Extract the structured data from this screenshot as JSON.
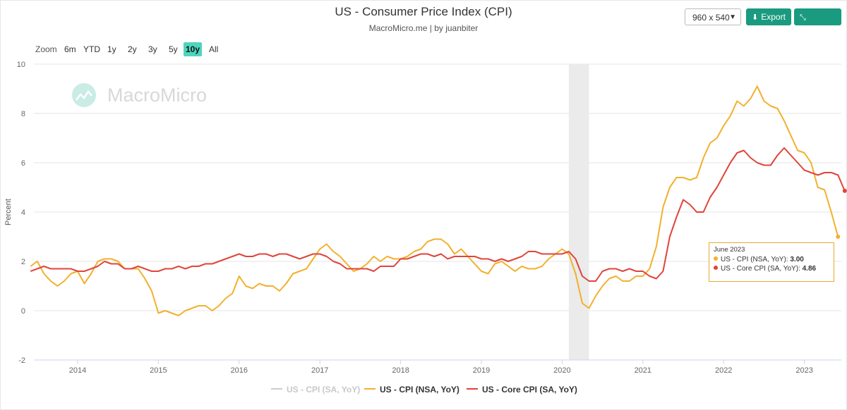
{
  "header": {
    "title": "US - Consumer Price Index (CPI)",
    "subtitle": "MacroMicro.me | by juanbiter",
    "size_select": "960 x 540",
    "export_label": "Export",
    "reduce_label": "Reduce"
  },
  "zoom": {
    "label": "Zoom",
    "options": [
      "6m",
      "YTD",
      "1y",
      "2y",
      "3y",
      "5y",
      "10y",
      "All"
    ],
    "active": "10y"
  },
  "watermark": "MacroMicro",
  "tooltip": {
    "date": "June 2023",
    "rows": [
      {
        "label": "US - CPI (NSA, YoY): ",
        "value": "3.00",
        "color": "#f2b02c"
      },
      {
        "label": "US - Core CPI (SA, YoY): ",
        "value": "4.86",
        "color": "#e0443a"
      }
    ]
  },
  "legend": [
    {
      "name": "US - CPI (SA, YoY)",
      "color": "#cccccc",
      "hidden": true
    },
    {
      "name": "US - CPI (NSA, YoY)",
      "color": "#f2b02c"
    },
    {
      "name": "US - Core CPI (SA, YoY)",
      "color": "#e0443a"
    }
  ],
  "chart_data": {
    "type": "line",
    "title": "US - Consumer Price Index (CPI)",
    "ylabel": "Percent",
    "ylim": [
      -2,
      10
    ],
    "yticks": [
      -2,
      0,
      2,
      4,
      6,
      8,
      10
    ],
    "xlim": [
      2013.458,
      2023.458
    ],
    "xticks": [
      "2014",
      "2015",
      "2016",
      "2017",
      "2018",
      "2019",
      "2020",
      "2021",
      "2022",
      "2023"
    ],
    "recession_band": [
      2020.083,
      2020.333
    ],
    "grid": true,
    "legend_position": "bottom",
    "series": [
      {
        "name": "US - CPI (NSA, YoY)",
        "color": "#f2b02c",
        "start": "2013-06",
        "values": [
          1.8,
          2.0,
          1.5,
          1.2,
          1.0,
          1.2,
          1.5,
          1.6,
          1.1,
          1.5,
          2.0,
          2.1,
          2.1,
          2.0,
          1.7,
          1.7,
          1.7,
          1.3,
          0.8,
          -0.1,
          0.0,
          -0.1,
          -0.2,
          0.0,
          0.1,
          0.2,
          0.2,
          0.0,
          0.2,
          0.5,
          0.7,
          1.4,
          1.0,
          0.9,
          1.1,
          1.0,
          1.0,
          0.8,
          1.1,
          1.5,
          1.6,
          1.7,
          2.1,
          2.5,
          2.7,
          2.4,
          2.2,
          1.9,
          1.6,
          1.7,
          1.9,
          2.2,
          2.0,
          2.2,
          2.1,
          2.1,
          2.2,
          2.4,
          2.5,
          2.8,
          2.9,
          2.9,
          2.7,
          2.3,
          2.5,
          2.2,
          1.9,
          1.6,
          1.5,
          1.9,
          2.0,
          1.8,
          1.6,
          1.8,
          1.7,
          1.7,
          1.8,
          2.1,
          2.3,
          2.5,
          2.3,
          1.5,
          0.3,
          0.1,
          0.6,
          1.0,
          1.3,
          1.4,
          1.2,
          1.2,
          1.4,
          1.4,
          1.7,
          2.6,
          4.2,
          5.0,
          5.4,
          5.4,
          5.3,
          5.4,
          6.2,
          6.8,
          7.0,
          7.5,
          7.9,
          8.5,
          8.3,
          8.6,
          9.1,
          8.5,
          8.3,
          8.2,
          7.7,
          7.1,
          6.5,
          6.4,
          6.0,
          5.0,
          4.9,
          4.0,
          3.0
        ]
      },
      {
        "name": "US - Core CPI (SA, YoY)",
        "color": "#e0443a",
        "start": "2013-06",
        "values": [
          1.6,
          1.7,
          1.8,
          1.7,
          1.7,
          1.7,
          1.7,
          1.6,
          1.6,
          1.7,
          1.8,
          2.0,
          1.9,
          1.9,
          1.7,
          1.7,
          1.8,
          1.7,
          1.6,
          1.6,
          1.7,
          1.7,
          1.8,
          1.7,
          1.8,
          1.8,
          1.9,
          1.9,
          2.0,
          2.1,
          2.2,
          2.3,
          2.2,
          2.2,
          2.3,
          2.3,
          2.2,
          2.3,
          2.3,
          2.2,
          2.1,
          2.2,
          2.3,
          2.3,
          2.2,
          2.0,
          1.9,
          1.7,
          1.7,
          1.7,
          1.7,
          1.6,
          1.8,
          1.8,
          1.8,
          2.1,
          2.1,
          2.2,
          2.3,
          2.3,
          2.2,
          2.3,
          2.1,
          2.2,
          2.2,
          2.2,
          2.2,
          2.1,
          2.1,
          2.0,
          2.1,
          2.0,
          2.1,
          2.2,
          2.4,
          2.4,
          2.3,
          2.3,
          2.3,
          2.3,
          2.4,
          2.1,
          1.4,
          1.2,
          1.2,
          1.6,
          1.7,
          1.7,
          1.6,
          1.7,
          1.6,
          1.6,
          1.4,
          1.3,
          1.6,
          3.0,
          3.8,
          4.5,
          4.3,
          4.0,
          4.0,
          4.6,
          5.0,
          5.5,
          6.0,
          6.4,
          6.5,
          6.2,
          6.0,
          5.9,
          5.9,
          6.3,
          6.6,
          6.3,
          6.0,
          5.7,
          5.6,
          5.5,
          5.6,
          5.6,
          5.5,
          4.86
        ]
      }
    ]
  }
}
